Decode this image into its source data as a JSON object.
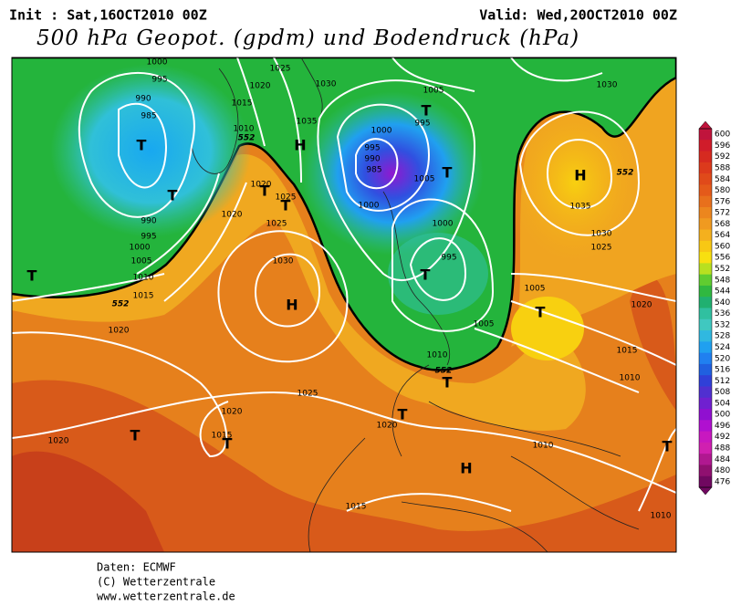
{
  "header": {
    "init": "Init : Sat,16OCT2010 00Z",
    "valid": "Valid: Wed,20OCT2010 00Z",
    "title": "500 hPa Geopot. (gpdm) und Bodendruck (hPa)"
  },
  "map": {
    "isobar_labels": [
      "1000",
      "995",
      "990",
      "985",
      "1025",
      "1020",
      "1015",
      "1010",
      "1030",
      "1035",
      "1005",
      "1000",
      "995",
      "995",
      "990",
      "985",
      "1000",
      "1005",
      "1000",
      "995",
      "1030",
      "1035",
      "1030",
      "1025",
      "1020",
      "1025",
      "1020",
      "1025",
      "990",
      "995",
      "1000",
      "1005",
      "1010",
      "1015",
      "1030",
      "1005",
      "1020",
      "1015",
      "1010",
      "1005",
      "1010",
      "1020",
      "1020",
      "1015",
      "1025",
      "1020",
      "1010",
      "1020",
      "1015",
      "1010"
    ],
    "contour_labels": [
      "552",
      "552",
      "552",
      "552"
    ],
    "centers": [
      "T",
      "T",
      "T",
      "H",
      "T",
      "T",
      "H",
      "T",
      "T",
      "T",
      "H",
      "T",
      "T",
      "T",
      "T",
      "T",
      "H",
      "T"
    ]
  },
  "colorbar": {
    "levels": [
      600,
      596,
      592,
      588,
      584,
      580,
      576,
      572,
      568,
      564,
      560,
      556,
      552,
      548,
      544,
      540,
      536,
      532,
      528,
      524,
      520,
      516,
      512,
      508,
      504,
      500,
      496,
      492,
      488,
      484,
      480,
      476
    ],
    "colors": [
      "#c0143c",
      "#d01c2a",
      "#d62a20",
      "#dc3a1c",
      "#e04a1a",
      "#e45a1a",
      "#e8701c",
      "#ec861e",
      "#f09a20",
      "#f4b01e",
      "#f8c814",
      "#f8e010",
      "#b8e020",
      "#60cc30",
      "#30b840",
      "#20b070",
      "#30c0a0",
      "#40c8c0",
      "#30b8e0",
      "#20a0f0",
      "#2080f0",
      "#2060e0",
      "#3040d8",
      "#5030d0",
      "#7020d0",
      "#9010d0",
      "#b010d0",
      "#c818c0",
      "#d020b0",
      "#b01890",
      "#901070",
      "#700860"
    ]
  },
  "footer": {
    "source": "Daten: ECMWF",
    "copyright": "(C) Wetterzentrale",
    "url": "www.wetterzentrale.de"
  }
}
